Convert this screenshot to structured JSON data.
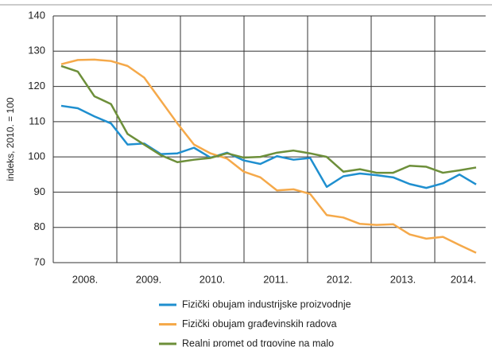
{
  "chart_data": {
    "type": "line",
    "y_label": "indeks, 2010. = 100",
    "categories": [
      null,
      null,
      null,
      null,
      null,
      null,
      null,
      null,
      null,
      null,
      null,
      null,
      null,
      null,
      null,
      null,
      null,
      null,
      null,
      null,
      null,
      null,
      null,
      null,
      null,
      null
    ],
    "x_tick_labels": [
      "2008.",
      "2009.",
      "2010.",
      "2011.",
      "2012.",
      "2013.",
      "2014."
    ],
    "series": [
      {
        "name": "Fizički obujam industrijske proizvodnje",
        "color": "#1f8fcf",
        "values": [
          114.5,
          113.8,
          111.5,
          109.5,
          103.5,
          103.8,
          100.8,
          101,
          102.6,
          99.8,
          101.2,
          99,
          98,
          100.2,
          99.2,
          99.7,
          91.5,
          94.5,
          95.3,
          94.8,
          94.2,
          92.3,
          91.2,
          92.5,
          95,
          92.2
        ]
      },
      {
        "name": "Fizički obujam građevinskih radova",
        "color": "#f5a94a",
        "values": [
          126.3,
          127.5,
          127.6,
          127.2,
          125.8,
          122.5,
          116,
          109.5,
          103.5,
          101,
          99.5,
          95.8,
          94.2,
          90.5,
          90.8,
          89.5,
          83.5,
          82.8,
          81,
          80.7,
          80.9,
          78,
          76.8,
          77.3,
          75,
          72.8
        ]
      },
      {
        "name": "Realni promet od trgovine na malo",
        "color": "#6d8f3a",
        "values": [
          125.8,
          124.2,
          117.2,
          115,
          106.5,
          103.5,
          100.5,
          98.5,
          99.2,
          99.7,
          101,
          99.8,
          100,
          101.2,
          101.8,
          101,
          100,
          95.8,
          96.5,
          95.5,
          95.5,
          97.5,
          97.2,
          95.5,
          96.2,
          97
        ]
      }
    ],
    "ylim": [
      70,
      140
    ],
    "yticks": [
      70,
      80,
      90,
      100,
      110,
      120,
      130,
      140
    ],
    "grid": true
  }
}
